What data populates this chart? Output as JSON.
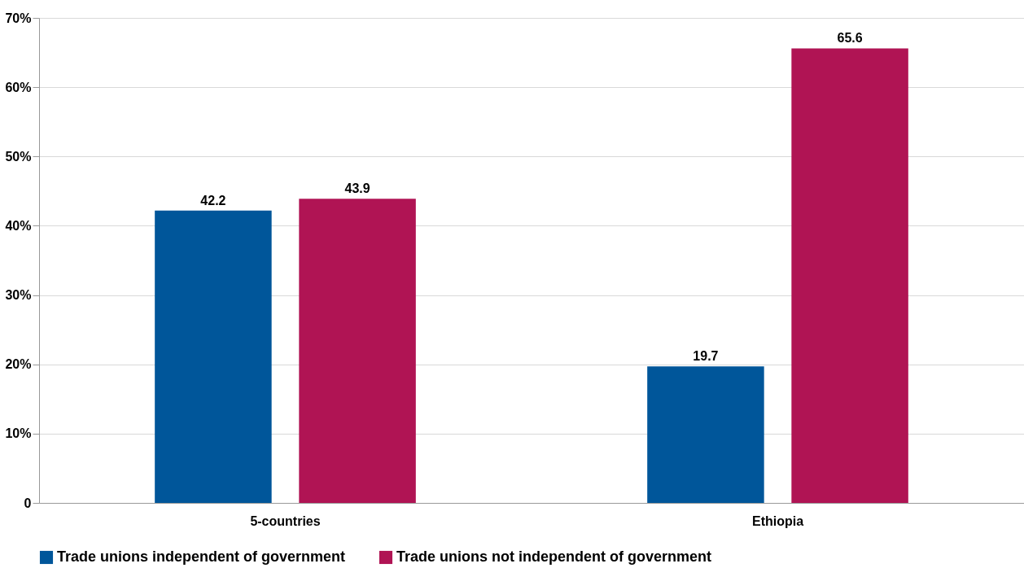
{
  "chart_data": {
    "type": "bar",
    "categories": [
      "5-countries",
      "Ethiopia"
    ],
    "series": [
      {
        "name": "Trade unions independent of government",
        "color": "#00569a",
        "values": [
          42.2,
          19.7
        ]
      },
      {
        "name": "Trade unions not independent of government",
        "color": "#b01454",
        "values": [
          43.9,
          65.6
        ]
      }
    ],
    "ylim": [
      0,
      70
    ],
    "yticks": [
      0,
      {
        "value": 10,
        "label": "10%"
      },
      {
        "value": 20,
        "label": "20%"
      },
      {
        "value": 30,
        "label": "30%"
      },
      {
        "value": 40,
        "label": "40%"
      },
      {
        "value": 50,
        "label": "50%"
      },
      {
        "value": 60,
        "label": "60%"
      },
      {
        "value": 70,
        "label": "70%"
      }
    ],
    "grid": "y",
    "legend": "bottom",
    "data_labels": true
  }
}
